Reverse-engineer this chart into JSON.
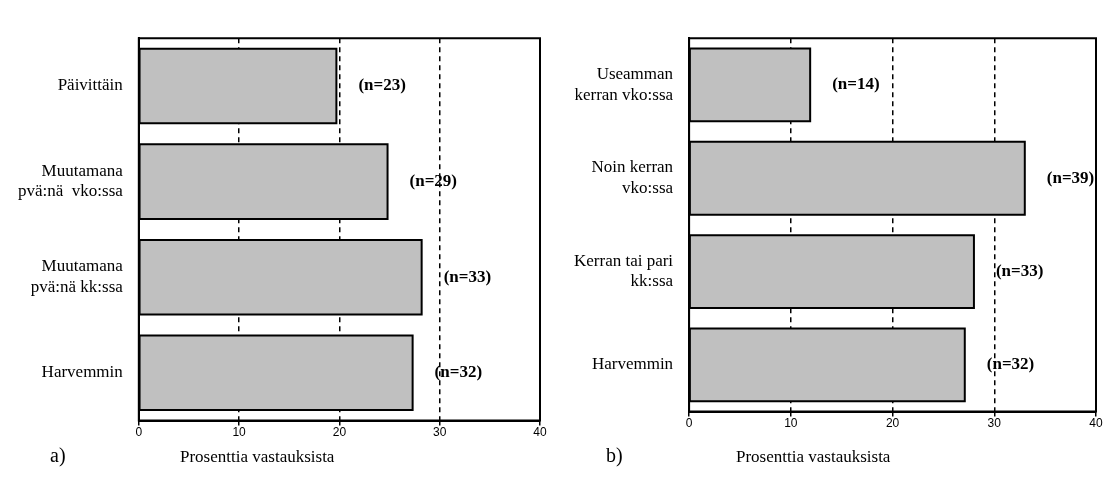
{
  "chart_data": [
    {
      "type": "bar",
      "orientation": "horizontal",
      "categories": [
        "Päivittäin",
        "Muutamana\npvä:nä  vko:ssa",
        "Muutamana\npvä:nä kk:ssa",
        "Harvemmin"
      ],
      "values": [
        19.7,
        24.8,
        28.2,
        27.3
      ],
      "color": "#c0c0c0",
      "xlabel": "Prosenttia vastauksista",
      "xlim": [
        0,
        40
      ],
      "xticks": [
        0,
        10,
        20,
        30,
        40
      ],
      "grid": "x",
      "line_style": "dashed",
      "legend": false,
      "annotations": [
        "a)",
        "(n=23)",
        "(n=29)",
        "(n=33)",
        "(n=32)"
      ]
    },
    {
      "type": "bar",
      "orientation": "horizontal",
      "categories": [
        "Useamman\nkerran vko:ssa",
        "Noin kerran\nvko:ssa",
        "Kerran tai pari\nkk:ssa",
        "Harvemmin"
      ],
      "values": [
        11.9,
        33.0,
        28.0,
        27.1
      ],
      "color": "#c0c0c0",
      "xlabel": "Prosenttia vastauksista",
      "xlim": [
        0,
        40
      ],
      "xticks": [
        0,
        10,
        20,
        30,
        40
      ],
      "grid": "x",
      "line_style": "dashed",
      "legend": false,
      "annotations": [
        "b)",
        "(n=14)",
        "(n=39)",
        "(n=33)",
        "(n=32)"
      ]
    }
  ]
}
